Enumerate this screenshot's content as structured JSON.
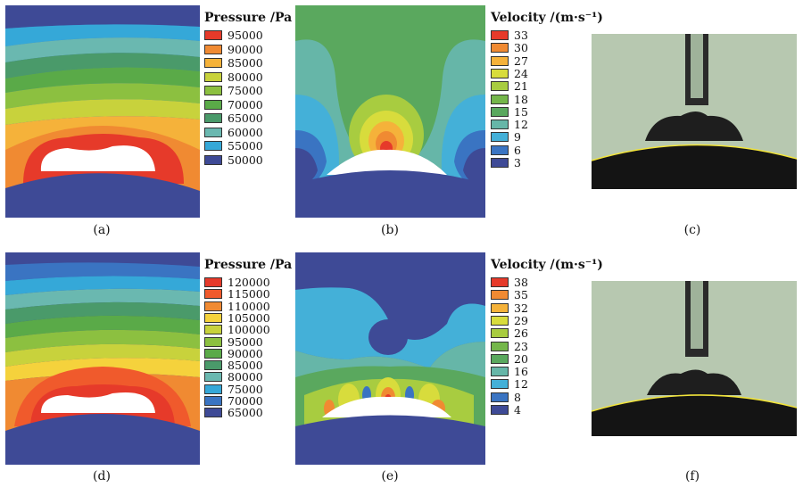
{
  "panels": {
    "a": {
      "caption": "(a)"
    },
    "b": {
      "caption": "(b)"
    },
    "c": {
      "caption": "(c)"
    },
    "d": {
      "caption": "(d)"
    },
    "e": {
      "caption": "(e)"
    },
    "f": {
      "caption": "(f)"
    }
  },
  "legends": {
    "pressure_top": {
      "title": "Pressure /Pa",
      "levels": [
        "95000",
        "90000",
        "85000",
        "80000",
        "75000",
        "70000",
        "65000",
        "60000",
        "55000",
        "50000"
      ],
      "colors": [
        "#e63a2a",
        "#f08a32",
        "#f5b23a",
        "#c8d23c",
        "#8cc040",
        "#5aaa48",
        "#4a9a6a",
        "#6ab8b0",
        "#35a8d8",
        "#3e4a96"
      ]
    },
    "velocity_top": {
      "title": "Velocity /(m·s⁻¹)",
      "levels": [
        "33",
        "30",
        "27",
        "24",
        "21",
        "18",
        "15",
        "12",
        "9",
        "6",
        "3"
      ],
      "colors": [
        "#e63a2a",
        "#f08a32",
        "#f5b23a",
        "#d8dc3c",
        "#a8cc40",
        "#74b64a",
        "#5aa85e",
        "#66b6a8",
        "#44b0d8",
        "#3a74c2",
        "#3e4a96"
      ]
    },
    "pressure_bottom": {
      "title": "Pressure /Pa",
      "levels": [
        "120000",
        "115000",
        "110000",
        "105000",
        "100000",
        "95000",
        "90000",
        "85000",
        "80000",
        "75000",
        "70000",
        "65000"
      ],
      "colors": [
        "#e63a2a",
        "#f05a2c",
        "#f08a32",
        "#f5d23c",
        "#c8d23c",
        "#8cc040",
        "#5aaa48",
        "#4a9a6a",
        "#6ab8b0",
        "#35a8d8",
        "#3a74c2",
        "#3e4a96"
      ]
    },
    "velocity_bottom": {
      "title": "Velocity /(m·s⁻¹)",
      "levels": [
        "38",
        "35",
        "32",
        "29",
        "26",
        "23",
        "20",
        "16",
        "12",
        "8",
        "4"
      ],
      "colors": [
        "#e63a2a",
        "#f08a32",
        "#f5b23a",
        "#d8dc3c",
        "#a8cc40",
        "#74b64a",
        "#5aa85e",
        "#66b6a8",
        "#44b0d8",
        "#3a74c2",
        "#3e4a96"
      ]
    }
  },
  "colors": {
    "background": "#ffffff",
    "photo_background": "#b7c8b0",
    "substrate": "#141414",
    "interface_line": "#f2e43a",
    "droplet": "#ffffff"
  }
}
